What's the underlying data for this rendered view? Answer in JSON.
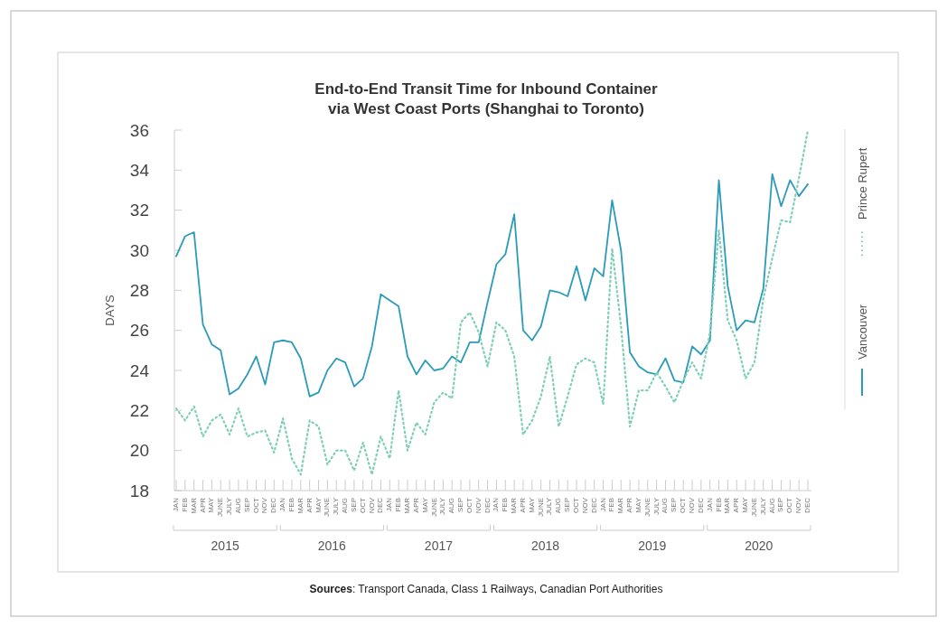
{
  "chart_data": {
    "type": "line",
    "title": "End-to-End Transit Time for Inbound Container\nvia West Coast Ports (Shanghai to Toronto)",
    "ylabel": "DAYS",
    "categories": [
      "JAN",
      "FEB",
      "MAR",
      "APR",
      "MAY",
      "JUNE",
      "JULY",
      "AUG",
      "SEP",
      "OCT",
      "NOV",
      "DEC",
      "JAN",
      "FEB",
      "MAR",
      "APR",
      "MAY",
      "JUNE",
      "JULY",
      "AUG",
      "SEP",
      "OCT",
      "NOV",
      "DEC",
      "JAN",
      "FEB",
      "MAR",
      "APR",
      "MAY",
      "JUNE",
      "JULY",
      "AUG",
      "SEP",
      "OCT",
      "NOV",
      "DEC",
      "JAN",
      "FEB",
      "MAR",
      "APR",
      "MAY",
      "JUNE",
      "JULY",
      "AUG",
      "SEP",
      "OCT",
      "NOV",
      "DEC",
      "JAN",
      "FEB",
      "MAR",
      "APR",
      "MAY",
      "JUNE",
      "JULY",
      "AUG",
      "SEP",
      "OCT",
      "NOV",
      "DEC",
      "JAN",
      "FEB",
      "MAR",
      "APR",
      "MAY",
      "JUNE",
      "JULY",
      "AUG",
      "SEP",
      "OCT",
      "NOV",
      "DEC"
    ],
    "series": [
      {
        "name": "Vancouver",
        "color": "#2a9bb8",
        "line_style": "solid",
        "values": [
          29.7,
          30.7,
          30.9,
          26.3,
          25.3,
          25.0,
          22.8,
          23.1,
          23.8,
          24.7,
          23.3,
          25.4,
          25.5,
          25.4,
          24.6,
          22.7,
          22.9,
          24.0,
          24.6,
          24.4,
          23.2,
          23.6,
          25.2,
          27.8,
          27.5,
          27.2,
          24.7,
          23.8,
          24.5,
          24.0,
          24.1,
          24.7,
          24.4,
          25.4,
          25.4,
          27.4,
          29.3,
          29.8,
          31.8,
          26.0,
          25.5,
          26.2,
          28.0,
          27.9,
          27.7,
          29.2,
          27.5,
          29.1,
          28.7,
          32.5,
          30.0,
          24.9,
          24.2,
          23.9,
          23.8,
          24.6,
          23.5,
          23.4,
          25.2,
          24.8,
          25.5,
          33.5,
          28.2,
          26.0,
          26.5,
          26.4,
          28.1,
          33.8,
          32.2,
          33.5,
          32.7,
          33.3
        ]
      },
      {
        "name": "Prince Rupert",
        "color": "#7fcfb8",
        "line_style": "dotted",
        "values": [
          22.1,
          21.5,
          22.2,
          20.7,
          21.5,
          21.8,
          20.8,
          22.1,
          20.7,
          20.9,
          21.0,
          19.9,
          21.6,
          19.6,
          18.8,
          21.5,
          21.2,
          19.3,
          20.0,
          20.0,
          19.0,
          20.4,
          18.8,
          20.7,
          19.6,
          23.0,
          20.0,
          21.4,
          20.8,
          22.4,
          22.9,
          22.6,
          26.4,
          26.9,
          25.9,
          24.2,
          26.4,
          26.0,
          24.7,
          20.8,
          21.5,
          22.7,
          24.7,
          21.2,
          22.7,
          24.3,
          24.6,
          24.4,
          22.3,
          30.1,
          26.2,
          21.2,
          23.0,
          23.0,
          23.9,
          23.2,
          22.4,
          23.5,
          24.4,
          23.6,
          25.9,
          31.0,
          26.5,
          25.5,
          23.6,
          24.4,
          27.6,
          29.6,
          31.5,
          31.4,
          33.6,
          36.0
        ]
      }
    ],
    "ylim": [
      18,
      36
    ],
    "yticks": [
      18,
      20,
      22,
      24,
      26,
      28,
      30,
      32,
      34,
      36
    ],
    "grid": false,
    "legend": "right",
    "marker": "none",
    "annotations": [
      "Sources: Transport Canada, Class 1 Railways, Canadian Port Authorities",
      "2015",
      "2016",
      "2017",
      "2018",
      "2019",
      "2020"
    ]
  }
}
